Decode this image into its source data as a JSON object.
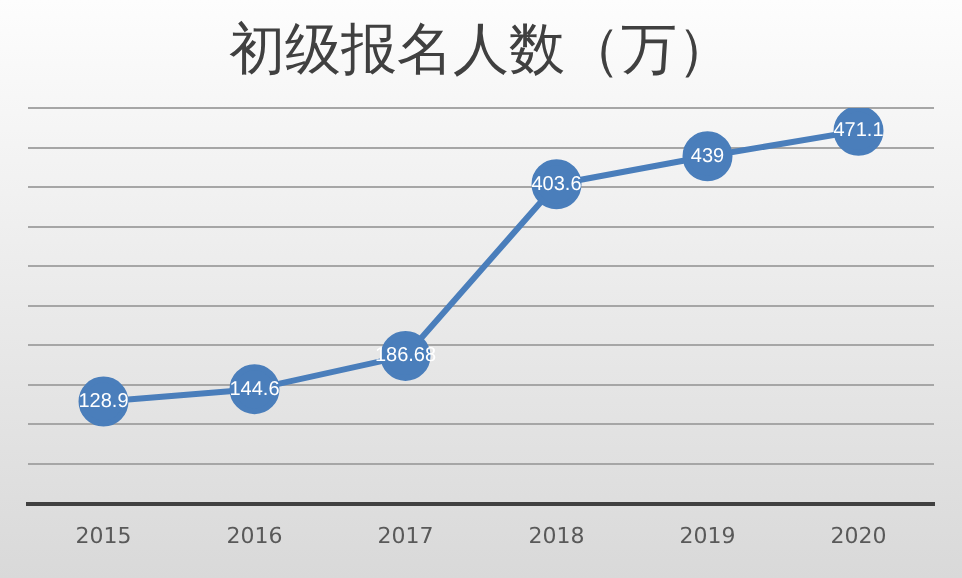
{
  "chart_data": {
    "type": "line",
    "title": "初级报名人数（万）",
    "categories": [
      "2015",
      "2016",
      "2017",
      "2018",
      "2019",
      "2020"
    ],
    "series": [
      {
        "color": "#4a7ebb",
        "values": [
          128.9,
          144.6,
          186.68,
          403.6,
          439,
          471.1
        ]
      }
    ],
    "ylim": [
      0,
      500
    ],
    "yticks": [
      {
        "value": 0,
        "label": null
      },
      {
        "value": 50,
        "label": null
      },
      {
        "value": 100,
        "label": null
      },
      {
        "value": 150,
        "label": null
      },
      {
        "value": 200,
        "label": null
      },
      {
        "value": 250,
        "label": null
      },
      {
        "value": 300,
        "label": null
      },
      {
        "value": 350,
        "label": null
      },
      {
        "value": 400,
        "label": null
      },
      {
        "value": 450,
        "label": null
      },
      {
        "value": 500,
        "label": null
      }
    ],
    "tick_labels": "x",
    "grid": "y",
    "marker": "circle",
    "line_style": "solid",
    "data_labels": true,
    "legend": false
  }
}
